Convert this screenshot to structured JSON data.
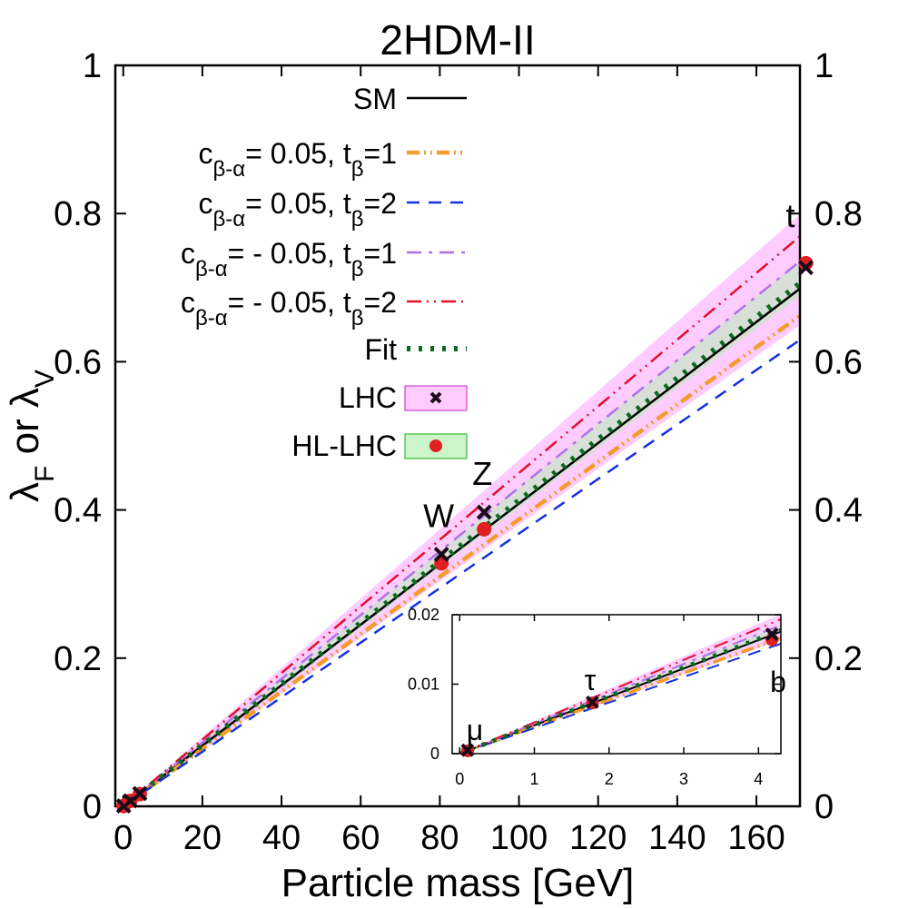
{
  "chart_data": {
    "type": "line",
    "title": "2HDM-II",
    "xlabel": "Particle mass [GeV]",
    "ylabel_parts": [
      "λ",
      "F",
      " or λ",
      "V"
    ],
    "xlim": [
      -2,
      171
    ],
    "ylim": [
      0,
      1
    ],
    "xticks": [
      0,
      20,
      40,
      60,
      80,
      100,
      120,
      140,
      160
    ],
    "yticks": [
      0,
      0.2,
      0.4,
      0.6,
      0.8,
      1
    ],
    "ytick_labels": [
      "0",
      "0.2",
      "0.4",
      "0.6",
      "0.8",
      "1"
    ],
    "right_yticks": [
      0,
      0.2,
      0.4,
      0.6,
      0.8,
      1
    ],
    "right_ytick_labels": [
      "0",
      "0.2",
      "0.4",
      "0.6",
      "0.8",
      "1"
    ],
    "legend": [
      {
        "label": "SM",
        "color": "#000000",
        "dash": "",
        "width": 2.5
      },
      {
        "label_parts": [
          "c",
          "β-α",
          "= 0.05, t",
          "β",
          "=1"
        ],
        "color": "#f39c2b",
        "dash": "14 5 2 5 2 5",
        "width": 4.5
      },
      {
        "label_parts": [
          "c",
          "β-α",
          "= 0.05, t",
          "β",
          "=2"
        ],
        "color": "#1530e0",
        "dash": "14 10",
        "width": 2.5
      },
      {
        "label_parts": [
          "c",
          "β-α",
          "= - 0.05, t",
          "β",
          "=1"
        ],
        "color": "#b070e8",
        "dash": "16 8 4 8",
        "width": 2.5
      },
      {
        "label_parts": [
          "c",
          "β-α",
          "= - 0.05, t",
          "β",
          "=2"
        ],
        "color": "#e0102a",
        "dash": "16 6 2 6 2 6",
        "width": 2.5
      },
      {
        "label": "Fit",
        "color": "#0b6a1e",
        "dash": "4 9",
        "width": 6
      },
      {
        "label": "LHC",
        "fill": "#ffccff",
        "stroke": "#cc44cc",
        "marker": "cross"
      },
      {
        "label": "HL-LHC",
        "fill": "#ccf5cc",
        "stroke": "#33bb33",
        "marker": "dot"
      }
    ],
    "series": [
      {
        "name": "SM",
        "x": [
          0,
          172.5
        ],
        "y": [
          0,
          0.7048
        ]
      },
      {
        "name": "c(β-α)=0.05, tβ=1",
        "x": [
          0,
          172.5
        ],
        "y": [
          0,
          0.668
        ]
      },
      {
        "name": "c(β-α)=0.05, tβ=2",
        "x": [
          0,
          172.5
        ],
        "y": [
          0,
          0.635
        ]
      },
      {
        "name": "c(β-α)=-0.05, tβ=1",
        "x": [
          0,
          172.5
        ],
        "y": [
          0,
          0.742
        ]
      },
      {
        "name": "c(β-α)=-0.05, tβ=2",
        "x": [
          0,
          172.5
        ],
        "y": [
          0,
          0.776
        ]
      },
      {
        "name": "Fit",
        "x": [
          0,
          172.5
        ],
        "y": [
          0,
          0.712
        ]
      }
    ],
    "bands": [
      {
        "name": "LHC",
        "x": [
          0,
          172.5
        ],
        "y_low": [
          0,
          0.655
        ],
        "y_high": [
          0,
          0.806
        ]
      },
      {
        "name": "HL-LHC",
        "x": [
          0,
          172.5
        ],
        "y_low": [
          0,
          0.695
        ],
        "y_high": [
          0,
          0.742
        ]
      }
    ],
    "points": [
      {
        "label": "μ",
        "mass": 0.1057,
        "lhc": 0.0005,
        "hllhc": 0.0004
      },
      {
        "label": "τ",
        "mass": 1.777,
        "lhc": 0.0074,
        "hllhc": 0.0073
      },
      {
        "label": "b",
        "mass": 4.18,
        "lhc": 0.0172,
        "hllhc": 0.0164
      },
      {
        "label": "W",
        "mass": 80.4,
        "lhc": 0.34,
        "hllhc": 0.328,
        "show_label": true
      },
      {
        "label": "Z",
        "mass": 91.2,
        "lhc": 0.397,
        "hllhc": 0.374,
        "show_label": true
      },
      {
        "label": "t",
        "mass": 172.5,
        "lhc": 0.727,
        "hllhc": 0.733,
        "show_label": true
      }
    ],
    "inset": {
      "xlim": [
        -0.1,
        4.3
      ],
      "ylim": [
        0,
        0.02
      ],
      "xticks": [
        0,
        1,
        2,
        3,
        4
      ],
      "yticks": [
        0,
        0.01,
        0.02
      ],
      "ytick_labels": [
        "0",
        "0.01",
        "0.02"
      ],
      "labels": [
        "μ",
        "τ",
        "b"
      ]
    }
  }
}
